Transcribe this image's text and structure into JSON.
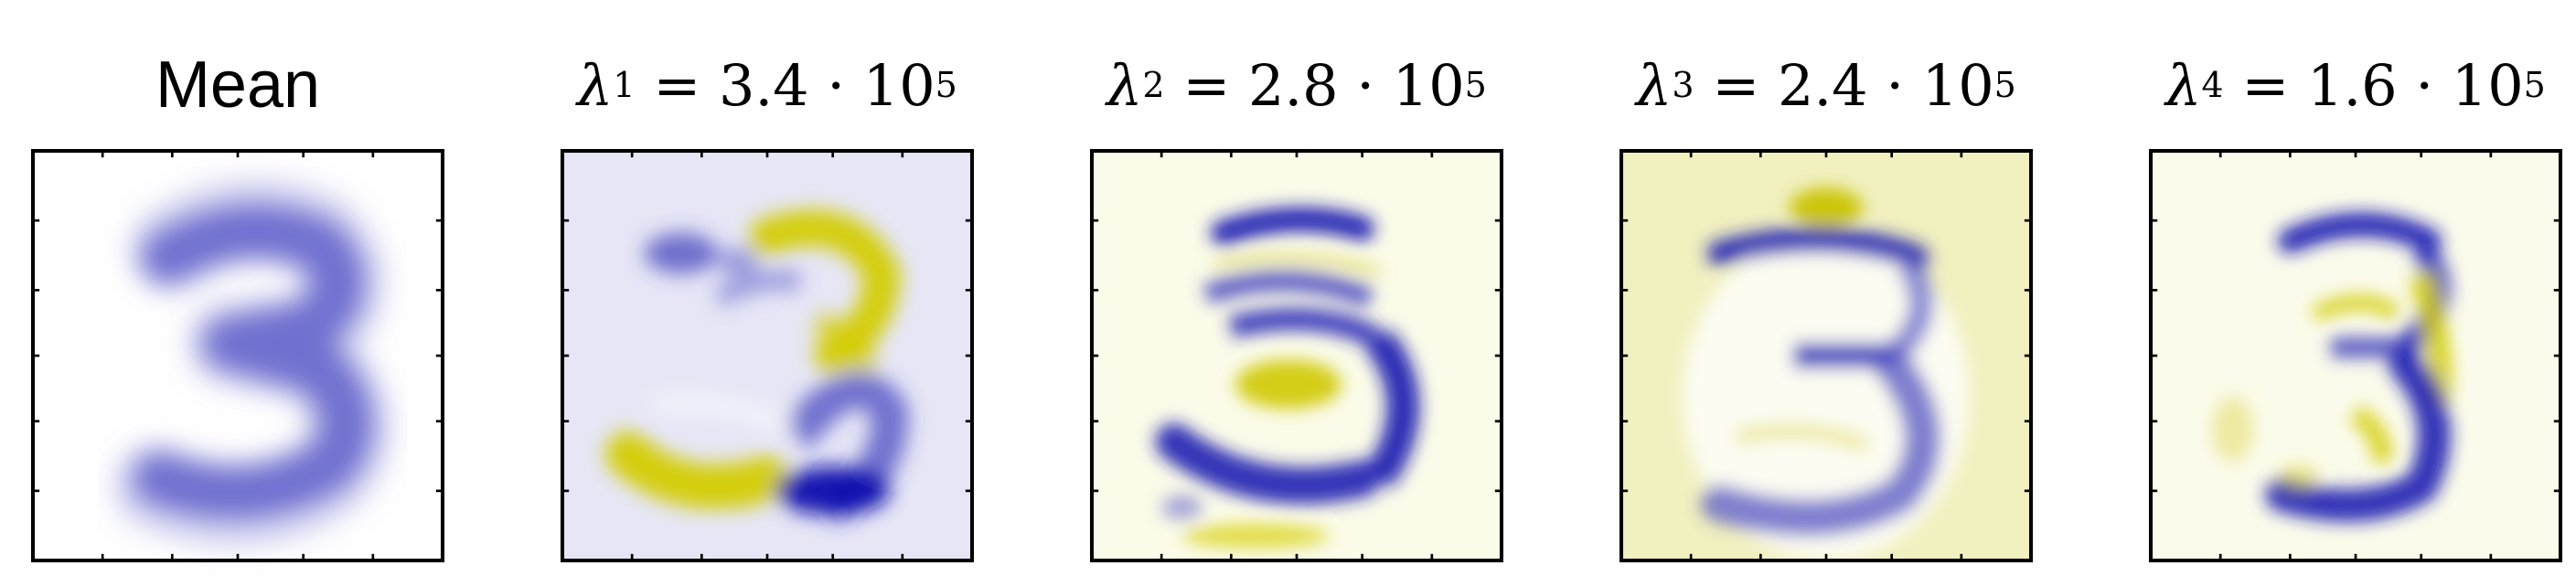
{
  "panels": [
    {
      "id": "mean",
      "title": "Mean",
      "background": "#ffffff",
      "image_label": "3"
    },
    {
      "id": "eigen-1",
      "lambda_symbol": "λ",
      "lambda_index": "1",
      "operator": "=",
      "coefficient": "3.4",
      "dot": "·",
      "base": "10",
      "exponent": "5",
      "background": "#e6e6f6",
      "image_label": "3"
    },
    {
      "id": "eigen-2",
      "lambda_symbol": "λ",
      "lambda_index": "2",
      "operator": "=",
      "coefficient": "2.8",
      "dot": "·",
      "base": "10",
      "exponent": "5",
      "background": "#fbfbe9",
      "image_label": "3"
    },
    {
      "id": "eigen-3",
      "lambda_symbol": "λ",
      "lambda_index": "3",
      "operator": "=",
      "coefficient": "2.4",
      "dot": "·",
      "base": "10",
      "exponent": "5",
      "background": "#f1f0bf",
      "image_label": "3"
    },
    {
      "id": "eigen-4",
      "lambda_symbol": "λ",
      "lambda_index": "4",
      "operator": "=",
      "coefficient": "1.6",
      "dot": "·",
      "base": "10",
      "exponent": "5",
      "background": "#fbfbeb",
      "image_label": "3"
    }
  ],
  "colors": {
    "blue": "#2a2ab8",
    "yellow": "#c8c200",
    "frame": "#000000"
  }
}
